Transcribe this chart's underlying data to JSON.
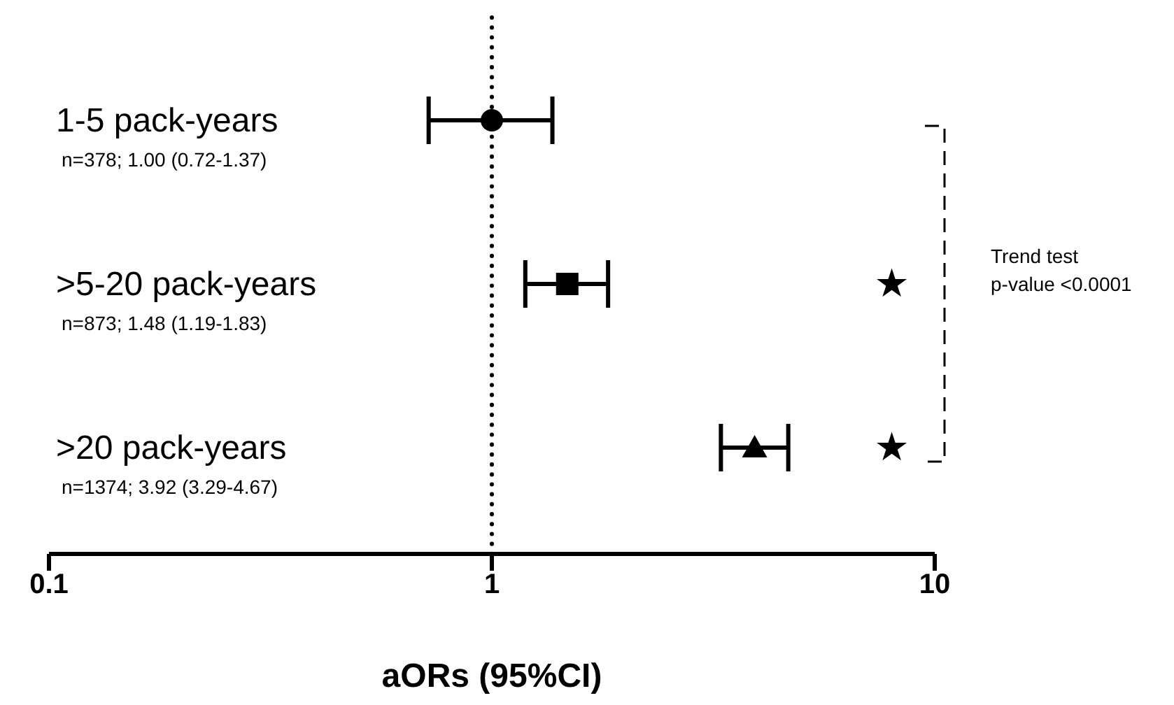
{
  "chart_data": {
    "type": "scatter",
    "orientation": "horizontal",
    "log": "x",
    "categories": [
      "1-5 pack-years",
      ">5-20 pack-years",
      ">20 pack-years"
    ],
    "value_labels": [
      "n=378; 1.00 (0.72-1.37)",
      "n=873; 1.48 (1.19-1.83)",
      "n=1374; 3.92 (3.29-4.67)"
    ],
    "series": [
      {
        "color": "#000000",
        "marker": "circle",
        "values": [
          1.0,
          null,
          null
        ],
        "errors": [
          [
            0.72,
            1.37
          ],
          null,
          null
        ]
      },
      {
        "color": "#000000",
        "marker": "square",
        "values": [
          null,
          1.48,
          null
        ],
        "errors": [
          null,
          [
            1.19,
            1.83
          ],
          null
        ]
      },
      {
        "color": "#000000",
        "marker": "triangle",
        "values": [
          null,
          null,
          3.92
        ],
        "errors": [
          null,
          null,
          [
            3.29,
            4.67
          ]
        ]
      }
    ],
    "xlim": [
      0.1,
      10
    ],
    "xticks": [
      0.1,
      1,
      10
    ],
    "xlabel": "aORs (95%CI)",
    "ref_lines": [
      {
        "axis": "x",
        "value": 1,
        "line_style": "dotted",
        "color": "#000000"
      }
    ],
    "annotations": [
      "★",
      "★",
      "Trend test",
      "p-value <0.0001"
    ]
  }
}
